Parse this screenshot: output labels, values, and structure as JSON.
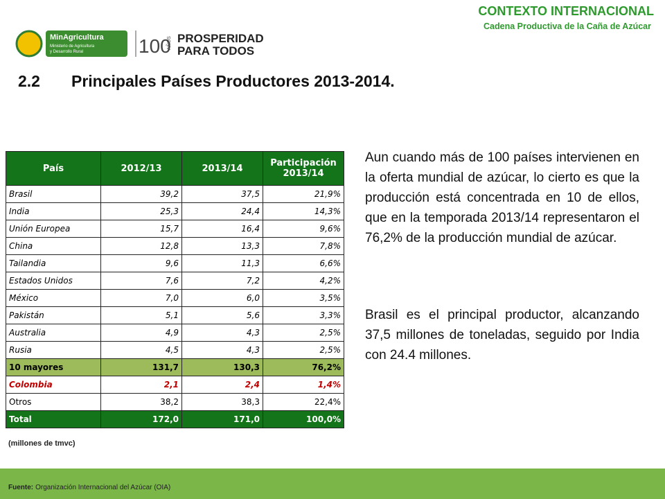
{
  "header": {
    "section": "CONTEXTO INTERNACIONAL",
    "subsection": "Cadena Productiva de la Caña de Azúcar",
    "logos": {
      "ministry_name": "MinAgricultura",
      "ministry_line1": "Ministerio de Agricultura",
      "ministry_line2": "y Desarrollo Rural",
      "anniversary": "100",
      "anniversary_word": "AÑOS",
      "slogan_line1": "PROSPERIDAD",
      "slogan_line2": "PARA TODOS"
    }
  },
  "title": {
    "number": "2.2",
    "text": "Principales Países Productores 2013-2014."
  },
  "table": {
    "columns": [
      "País",
      "2012/13",
      "2013/14",
      "Participación 2013/14"
    ],
    "rows": [
      [
        "Brasil",
        "39,2",
        "37,5",
        "21,9%"
      ],
      [
        "India",
        "25,3",
        "24,4",
        "14,3%"
      ],
      [
        "Unión Europea",
        "15,7",
        "16,4",
        "9,6%"
      ],
      [
        "China",
        "12,8",
        "13,3",
        "7,8%"
      ],
      [
        "Tailandia",
        "9,6",
        "11,3",
        "6,6%"
      ],
      [
        "Estados Unidos",
        "7,6",
        "7,2",
        "4,2%"
      ],
      [
        "México",
        "7,0",
        "6,0",
        "3,5%"
      ],
      [
        "Pakistán",
        "5,1",
        "5,6",
        "3,3%"
      ],
      [
        "Australia",
        "4,9",
        "4,3",
        "2,5%"
      ],
      [
        "Rusia",
        "4,5",
        "4,3",
        "2,5%"
      ],
      [
        "10 mayores",
        "131,7",
        "130,3",
        "76,2%"
      ],
      [
        "Colombia",
        "2,1",
        "2,4",
        "1,4%"
      ],
      [
        "Otros",
        "38,2",
        "38,3",
        "22,4%"
      ],
      [
        "Total",
        "172,0",
        "171,0",
        "100,0%"
      ]
    ],
    "note": "(millones de tmvc)"
  },
  "paragraphs": [
    "Aun cuando más de 100 países intervienen en la oferta mundial de azúcar, lo cierto es que la producción está concentrada en 10 de ellos, que en la temporada 2013/14  representaron el 76,2% de la producción mundial de azúcar.",
    "Brasil es el principal productor, alcanzando 37,5 millones de toneladas, seguido por India con 24.4 millones."
  ],
  "footer": {
    "label": "Fuente:",
    "source": "Organización Internacional del Azúcar (OIA)"
  }
}
